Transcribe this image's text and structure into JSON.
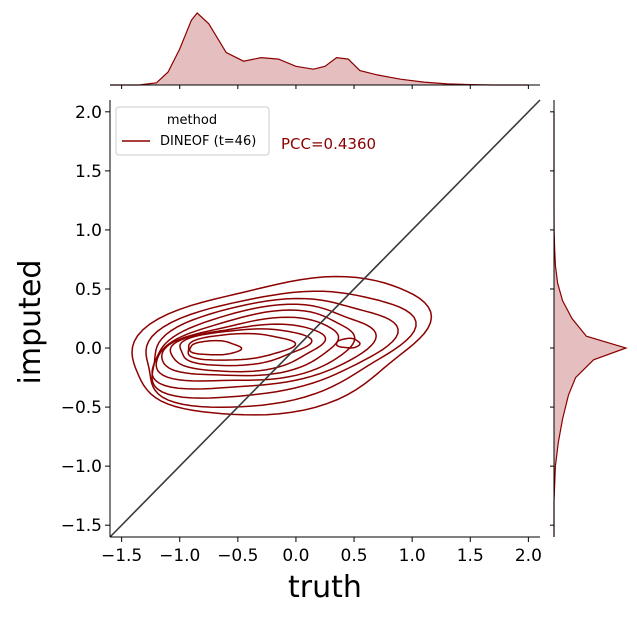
{
  "chart_data": {
    "type": "joint-kde",
    "xlabel": "truth",
    "ylabel": "imputed",
    "xlim": [
      -1.6,
      2.1
    ],
    "ylim": [
      -1.6,
      2.1
    ],
    "x_ticks": [
      "−1.5",
      "−1.0",
      "−0.5",
      "0.0",
      "0.5",
      "1.0",
      "1.5",
      "2.0"
    ],
    "y_ticks": [
      "−1.5",
      "−1.0",
      "−0.5",
      "0.0",
      "0.5",
      "1.0",
      "1.5",
      "2.0"
    ],
    "x_tick_values": [
      -1.5,
      -1.0,
      -0.5,
      0.0,
      0.5,
      1.0,
      1.5,
      2.0
    ],
    "y_tick_values": [
      -1.5,
      -1.0,
      -0.5,
      0.0,
      0.5,
      1.0,
      1.5,
      2.0
    ],
    "legend": {
      "title": "method",
      "entries": [
        "DINEOF (t=46)"
      ],
      "placement": "upper-left"
    },
    "annotation": "PCC=0.4360",
    "reference_line": {
      "from": [
        -1.6,
        -1.6
      ],
      "to": [
        2.1,
        2.1
      ]
    },
    "series_color": "#8b0000",
    "marginal_fill": "#e5bfbf",
    "identity_line_color": "#3a3a3a",
    "contours": [
      {
        "cx": -0.15,
        "cy": 0.02,
        "rx": 1.27,
        "ry": 0.55,
        "tilt": 0.15
      },
      {
        "cx": -0.2,
        "cy": 0.0,
        "rx": 1.15,
        "ry": 0.46,
        "tilt": 0.15
      },
      {
        "cx": -0.25,
        "cy": 0.0,
        "rx": 1.05,
        "ry": 0.39,
        "tilt": 0.14
      },
      {
        "cx": -0.3,
        "cy": 0.0,
        "rx": 0.95,
        "ry": 0.33,
        "tilt": 0.13
      },
      {
        "cx": -0.34,
        "cy": 0.0,
        "rx": 0.85,
        "ry": 0.28,
        "tilt": 0.12
      },
      {
        "cx": -0.38,
        "cy": 0.0,
        "rx": 0.76,
        "ry": 0.23,
        "tilt": 0.11
      },
      {
        "cx": -0.42,
        "cy": 0.0,
        "rx": 0.66,
        "ry": 0.19,
        "tilt": 0.09
      },
      {
        "cx": -0.46,
        "cy": 0.01,
        "rx": 0.56,
        "ry": 0.15,
        "tilt": 0.07
      },
      {
        "cx": -0.5,
        "cy": 0.01,
        "rx": 0.46,
        "ry": 0.11,
        "tilt": 0.05
      },
      {
        "cx": -0.7,
        "cy": 0.0,
        "rx": 0.22,
        "ry": 0.06,
        "tilt": 0.0
      },
      {
        "cx": 0.45,
        "cy": 0.04,
        "rx": 0.1,
        "ry": 0.04,
        "tilt": 0.0
      }
    ],
    "top_marginal": {
      "x": [
        -1.6,
        -1.35,
        -1.2,
        -1.1,
        -1.0,
        -0.9,
        -0.85,
        -0.75,
        -0.6,
        -0.45,
        -0.3,
        -0.15,
        0.0,
        0.15,
        0.25,
        0.35,
        0.45,
        0.55,
        0.7,
        0.9,
        1.1,
        1.3,
        1.5,
        1.7,
        2.0
      ],
      "density": [
        0.0,
        0.0,
        0.03,
        0.18,
        0.5,
        0.9,
        1.0,
        0.85,
        0.45,
        0.33,
        0.38,
        0.36,
        0.26,
        0.22,
        0.26,
        0.38,
        0.36,
        0.2,
        0.14,
        0.08,
        0.04,
        0.015,
        0.005,
        0.0,
        0.0
      ]
    },
    "right_marginal": {
      "y": [
        -1.6,
        -1.3,
        -1.0,
        -0.8,
        -0.6,
        -0.4,
        -0.25,
        -0.1,
        0.0,
        0.1,
        0.25,
        0.4,
        0.55,
        0.7,
        0.85,
        1.0,
        1.2,
        1.5,
        2.0
      ],
      "density": [
        0.0,
        0.0,
        0.02,
        0.06,
        0.12,
        0.2,
        0.3,
        0.55,
        1.0,
        0.45,
        0.25,
        0.12,
        0.05,
        0.02,
        0.008,
        0.002,
        0.0,
        0.0,
        0.0
      ]
    }
  }
}
